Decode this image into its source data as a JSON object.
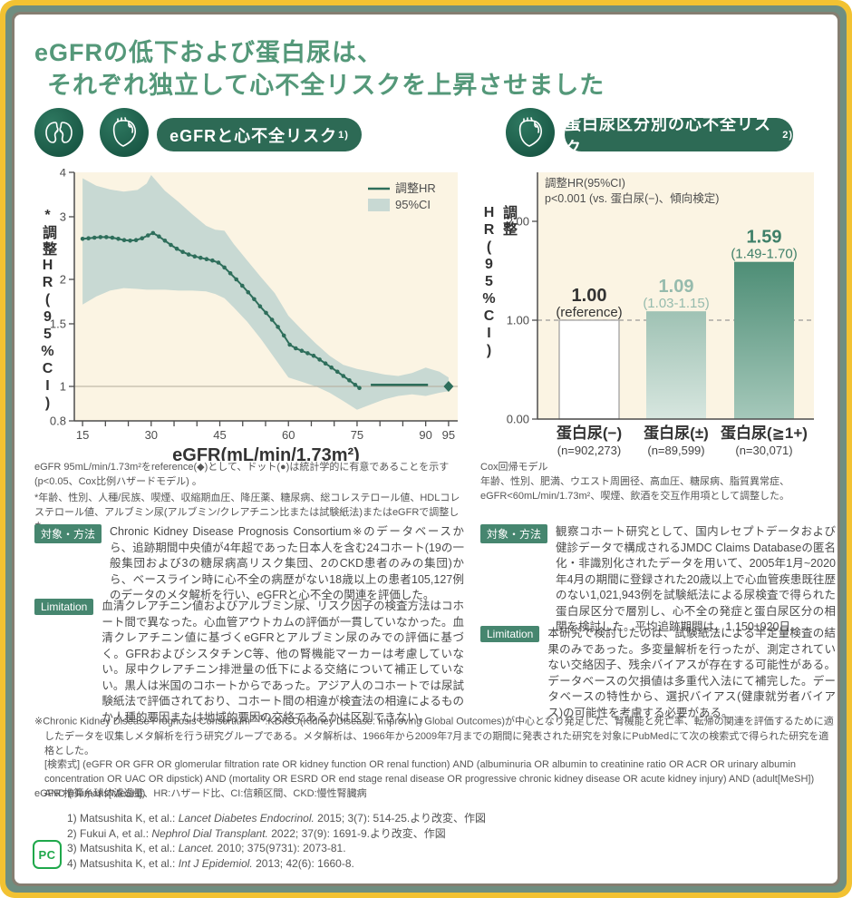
{
  "page": {
    "title_line1": "eGFRの低下および蛋白尿は、",
    "title_line2": "それぞれ独立して心不全リスクを上昇させました"
  },
  "badges": {
    "left": {
      "label": "eGFRと心不全リスク",
      "sup": "1)"
    },
    "right": {
      "label": "蛋白尿区分別の心不全リスク",
      "sup": "2)"
    }
  },
  "colors": {
    "frame_yellow": "#F2C232",
    "frame_sage": "#6F8E80",
    "title_green": "#549879",
    "badge_green": "#2D6A55",
    "plot_bg": "#FBF4E3",
    "ci_band": "#C8D9D3",
    "line_green": "#2E6E5B",
    "bar2_top": "#9FC2B4",
    "bar2_bottom": "#D7E6DF",
    "bar3_top": "#4E8E76",
    "bar3_bottom": "#A5C8BA",
    "label_light_green": "#96BBAD",
    "label_dark_green": "#3F8069",
    "axis_gray": "#4d4d4d",
    "section_label_bg": "#46866F"
  },
  "chart_data": [
    {
      "type": "line",
      "title": "eGFRと心不全リスク",
      "xlabel": "eGFR(mL/min/1.73m²)",
      "ylabel": "*調整HR(95%CI)",
      "y_scale": "log",
      "xlim": [
        13.2,
        97
      ],
      "ylim": [
        0.8,
        4
      ],
      "x_ticks": [
        15,
        30,
        45,
        60,
        75,
        90,
        95
      ],
      "x_minor_step": 5,
      "y_ticks": [
        "4",
        "3",
        "2",
        "1.5",
        "1",
        "0.8"
      ],
      "y_tick_vals": [
        4,
        3,
        2,
        1.5,
        1,
        0.8
      ],
      "legend": [
        {
          "label": "調整HR",
          "swatch": "line"
        },
        {
          "label": "95%CI",
          "swatch": "band"
        }
      ],
      "reference_line": 1.0,
      "dots": [
        [
          15,
          2.6
        ],
        [
          16.3,
          2.61
        ],
        [
          17.6,
          2.62
        ],
        [
          18.9,
          2.63
        ],
        [
          20.2,
          2.63
        ],
        [
          21.5,
          2.62
        ],
        [
          22.8,
          2.6
        ],
        [
          24.1,
          2.58
        ],
        [
          25.4,
          2.57
        ],
        [
          26.7,
          2.58
        ],
        [
          28,
          2.61
        ],
        [
          29.3,
          2.66
        ],
        [
          30.4,
          2.7
        ],
        [
          31.7,
          2.64
        ],
        [
          33,
          2.57
        ],
        [
          34.3,
          2.5
        ],
        [
          35.6,
          2.44
        ],
        [
          36.9,
          2.39
        ],
        [
          38.2,
          2.35
        ],
        [
          39.5,
          2.32
        ],
        [
          40.8,
          2.3
        ],
        [
          42.1,
          2.28
        ],
        [
          43.4,
          2.26
        ],
        [
          44.7,
          2.23
        ],
        [
          46,
          2.16
        ],
        [
          47.3,
          2.08
        ],
        [
          48.6,
          2.0
        ],
        [
          49.9,
          1.92
        ],
        [
          51.2,
          1.84
        ],
        [
          52.5,
          1.76
        ],
        [
          53.8,
          1.68
        ],
        [
          55.1,
          1.61
        ],
        [
          56.4,
          1.54
        ],
        [
          57.7,
          1.47
        ],
        [
          59,
          1.39
        ],
        [
          60.3,
          1.31
        ],
        [
          61.6,
          1.28
        ],
        [
          62.9,
          1.26
        ],
        [
          64.2,
          1.24
        ],
        [
          65.5,
          1.22
        ],
        [
          66.8,
          1.19
        ],
        [
          68.1,
          1.16
        ],
        [
          69.4,
          1.13
        ],
        [
          70.7,
          1.1
        ],
        [
          72,
          1.07
        ],
        [
          73.3,
          1.04
        ],
        [
          74.6,
          1.01
        ],
        [
          75.5,
          0.99
        ]
      ],
      "band": [
        [
          15,
          1.7,
          3.85
        ],
        [
          18,
          1.79,
          3.67
        ],
        [
          21,
          1.86,
          3.58
        ],
        [
          24,
          1.89,
          3.53
        ],
        [
          27,
          1.88,
          3.57
        ],
        [
          29,
          1.87,
          3.72
        ],
        [
          30,
          1.87,
          3.93
        ],
        [
          31,
          1.87,
          3.8
        ],
        [
          33,
          1.87,
          3.55
        ],
        [
          36,
          1.86,
          3.3
        ],
        [
          39,
          1.86,
          3.05
        ],
        [
          42,
          1.85,
          2.83
        ],
        [
          44,
          1.82,
          2.76
        ],
        [
          46,
          1.77,
          2.74
        ],
        [
          48,
          1.67,
          2.52
        ],
        [
          51,
          1.52,
          2.26
        ],
        [
          54,
          1.36,
          2.03
        ],
        [
          57,
          1.2,
          1.83
        ],
        [
          60,
          1.06,
          1.58
        ],
        [
          63,
          1.03,
          1.44
        ],
        [
          66,
          1.0,
          1.32
        ],
        [
          69,
          0.96,
          1.22
        ],
        [
          72,
          0.91,
          1.15
        ],
        [
          75,
          0.86,
          1.12
        ],
        [
          78,
          0.89,
          1.1
        ],
        [
          81,
          0.92,
          1.08
        ],
        [
          84,
          0.94,
          1.07
        ],
        [
          87,
          0.95,
          1.09
        ],
        [
          90,
          0.94,
          1.13
        ],
        [
          93,
          0.96,
          1.1
        ],
        [
          95,
          0.97,
          1.06
        ]
      ],
      "solid_segment": {
        "x1": 78,
        "x2": 90.5,
        "y": 1.01
      },
      "reference_point": {
        "x": 95,
        "y": 1.0,
        "marker": "diamond"
      }
    },
    {
      "type": "bar",
      "ylabel": "調整HR(95%CI)",
      "annotation": [
        "調整HR(95%CI)",
        "p<0.001 (vs. 蛋白尿(−)、傾向検定)"
      ],
      "categories": [
        "蛋白尿(−)",
        "蛋白尿(±)",
        "蛋白尿(≧1+)"
      ],
      "n_labels": [
        "(n=902,273)",
        "(n=89,599)",
        "(n=30,071)"
      ],
      "values": [
        1.0,
        1.09,
        1.59
      ],
      "value_labels": [
        "1.00",
        "1.09",
        "1.59"
      ],
      "ci_labels": [
        "(reference)",
        "(1.03-1.15)",
        "(1.49-1.70)"
      ],
      "ylim": [
        0,
        2.5
      ],
      "y_ticks": [
        "0.00",
        "1.00",
        "2.00"
      ],
      "y_tick_vals": [
        0,
        1,
        2
      ],
      "dashed_line": 1.0,
      "bar_styles": [
        "white",
        "grad-light",
        "grad-dark"
      ],
      "label_colors": [
        "#333333",
        "#96BBAD",
        "#3F8069"
      ]
    }
  ],
  "left_notes": {
    "p1": "eGFR 95mL/min/1.73m²をreference(◆)として、ドット(●)は統計学的に有意であることを示す(p<0.05、Cox比例ハザードモデル) 。",
    "p2": "*年齢、性別、人種/民族、喫煙、収縮期血圧、降圧薬、糖尿病、総コレステロール値、HDLコレステロール値、アルブミン尿(アルブミン/クレアチニン比または試験紙法)またはeGFRで調整した。"
  },
  "right_notes": {
    "p1": "Cox回帰モデル",
    "p2": "年齢、性別、肥満、ウエスト周囲径、高血圧、糖尿病、脂質異常症、eGFR<60mL/min/1.73m²、喫煙、飲酒を交互作用項として調整した。"
  },
  "sections": {
    "left_method": {
      "label": "対象・方法",
      "text": "Chronic Kidney Disease Prognosis Consortium※のデータベースから、追跡期間中央値が4年超であった日本人を含む24コホート(19の一般集団および3の糖尿病高リスク集団、2のCKD患者のみの集団)から、ベースライン時に心不全の病歴がない18歳以上の患者105,127例のデータのメタ解析を行い、eGFRと心不全の関連を評価した。"
    },
    "left_limitation": {
      "label": "Limitation",
      "text": "血清クレアチニン値およびアルブミン尿、リスク因子の検査方法はコホート間で異なった。心血管アウトカムの評価が一貫していなかった。血清クレアチニン値に基づくeGFRとアルブミン尿のみでの評価に基づく。GFRおよびシスタチンC等、他の腎機能マーカーは考慮していない。尿中クレアチニン排泄量の低下による交絡について補正していない。黒人は米国のコホートからであった。アジア人のコホートでは尿試験紙法で評価されており、コホート間の相違が検査法の相違によるものか人種的要因または地域的要因の交絡であるかは区別できない。"
    },
    "right_method": {
      "label": "対象・方法",
      "text": "観察コホート研究として、国内レセプトデータおよび健診データで構成されるJMDC Claims Databaseの匿名化・非識別化されたデータを用いて、2005年1月~2020年4月の期間に登録された20歳以上で心血管疾患既往歴のない1,021,943例を試験紙法による尿検査で得られた蛋白尿区分で層別し、心不全の発症と蛋白尿区分の相関を検討した。平均追跡期間は、1,150±920日。"
    },
    "right_limitation": {
      "label": "Limitation",
      "text": "本研究で検討したのは、試験紙法による半定量検査の結果のみであった。多変量解析を行ったが、測定されていない交絡因子、残余バイアスが存在する可能性がある。データベースの欠損値は多重代入法にて補完した。データベースの特性から、選択バイアス(健康就労者バイアス)の可能性を考慮する必要がある。"
    }
  },
  "footnotes": {
    "consortium_pre": "※Chronic Kidney Disease Prognosis Consortium",
    "consortium_sup": "3),4)",
    "consortium_rest": ":KDIGO(Kidney Disease: Improving Global Outcomes)が中心となり発足した、腎機能と死亡率、転帰の関連を評価するために適したデータを収集しメタ解析を行う研究グループである。メタ解析は、1966年から2009年7月までの期間に発表された研究を対象にPubMedにて次の検索式で得られた研究を適格とした。",
    "search_formula": "[検索式] (eGFR OR GFR OR glomerular filtration rate OR kidney function OR renal function) AND (albuminuria OR albumin to creatinine ratio OR ACR OR urinary albumin concentration OR UAC OR dipstick) AND (mortality OR ESRD OR end stage renal disease OR progressive chronic kidney disease OR acute kidney injury) AND (adult[MeSH]) AND (Humans[MeSH])",
    "abbreviations": "eGFR:推算糸球体濾過量、HR:ハザード比、CI:信頼区間、CKD:慢性腎臓病"
  },
  "references": [
    {
      "pre": "1) Matsushita K, et al.: ",
      "journal": "Lancet Diabetes Endocrinol.",
      "rest": " 2015; 3(7): 514-25.より改変、作図"
    },
    {
      "pre": "2) Fukui A, et al.: ",
      "journal": "Nephrol Dial Transplant.",
      "rest": " 2022; 37(9): 1691-9.より改変、作図"
    },
    {
      "pre": "3) Matsushita K, et al.: ",
      "journal": "Lancet.",
      "rest": " 2010; 375(9731): 2073-81."
    },
    {
      "pre": "4) Matsushita K, et al.: ",
      "journal": "Int J Epidemiol.",
      "rest": " 2013; 42(6): 1660-8."
    }
  ],
  "logo": {
    "text": "PC"
  }
}
